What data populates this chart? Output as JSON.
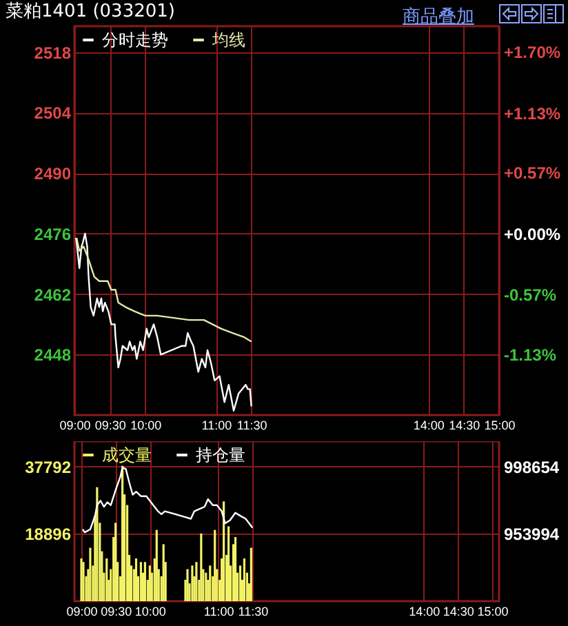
{
  "chart_data": [
    {
      "type": "line",
      "title": "菜粕1401 (033201)",
      "annotations": [
        "商品叠加"
      ],
      "xlim": [
        9,
        15
      ],
      "xticks": [
        {
          "value": 9,
          "label": "09:00"
        },
        {
          "value": 9.5,
          "label": "09:30"
        },
        {
          "value": 10,
          "label": "10:00"
        },
        {
          "value": 11,
          "label": "11:00"
        },
        {
          "value": 11.5,
          "label": "11:30"
        },
        {
          "value": 14,
          "label": "14:00"
        },
        {
          "value": 14.5,
          "label": "14:30"
        },
        {
          "value": 15,
          "label": "15:00"
        }
      ],
      "ylim": [
        2434,
        2524
      ],
      "yticks": [
        2518,
        2504,
        2490,
        2476,
        2462,
        2448
      ],
      "y2lim": [
        -1.7,
        1.94
      ],
      "y2ticks": [
        {
          "value": 1.7,
          "label": "+1.70%"
        },
        {
          "value": 1.13,
          "label": "+1.13%"
        },
        {
          "value": 0.57,
          "label": "+0.57%"
        },
        {
          "value": 0,
          "label": "+0.00%"
        },
        {
          "value": -0.57,
          "label": "-0.57%"
        },
        {
          "value": -1.13,
          "label": "-1.13%"
        }
      ],
      "grid": true,
      "legend": "top left",
      "series": [
        {
          "name": "分时走势",
          "color": "#ffffff",
          "x": [
            9.02,
            9.03,
            9.07,
            9.1,
            9.12,
            9.15,
            9.18,
            9.2,
            9.23,
            9.27,
            9.32,
            9.35,
            9.38,
            9.4,
            9.43,
            9.48,
            9.52,
            9.57,
            9.58,
            9.62,
            9.65,
            9.68,
            9.75,
            9.78,
            9.82,
            9.85,
            9.88,
            9.93,
            9.97,
            10.02,
            10.05,
            10.12,
            10.17,
            10.22,
            10.52,
            10.57,
            10.6,
            10.65,
            10.68,
            10.75,
            10.8,
            10.85,
            10.88,
            10.93,
            10.98,
            11.05,
            11.12,
            11.15,
            11.18,
            11.25,
            11.32,
            11.37,
            11.42,
            11.45,
            11.48,
            11.5
          ],
          "values": [
            2475,
            2474,
            2468,
            2473,
            2474,
            2476,
            2473,
            2466,
            2459,
            2457,
            2461,
            2459,
            2461,
            2458,
            2460,
            2458,
            2455,
            2455,
            2452,
            2445,
            2447,
            2450,
            2449,
            2451,
            2449,
            2450,
            2447,
            2451,
            2449,
            2454,
            2452,
            2455,
            2452,
            2448,
            2450,
            2450,
            2453,
            2451,
            2450,
            2444,
            2447,
            2445,
            2449,
            2446,
            2442,
            2443,
            2437,
            2439,
            2441,
            2435,
            2439,
            2440,
            2441,
            2440,
            2440,
            2436
          ]
        },
        {
          "name": "均线",
          "color": "#e6e6a8",
          "x": [
            9.03,
            9.07,
            9.13,
            9.2,
            9.28,
            9.35,
            9.47,
            9.52,
            9.58,
            9.62,
            9.72,
            9.85,
            10,
            10.17,
            10.62,
            10.83,
            10.95,
            11.07,
            11.23,
            11.4,
            11.5
          ],
          "values": [
            2475,
            2472,
            2473,
            2470,
            2466,
            2465,
            2465,
            2463,
            2463,
            2460,
            2459,
            2458,
            2457,
            2457,
            2456,
            2456,
            2455,
            2454,
            2453,
            2452,
            2451
          ]
        }
      ]
    },
    {
      "type": "bar",
      "xlim": [
        9,
        15
      ],
      "xticks": [
        {
          "value": 9,
          "label": "09:00"
        },
        {
          "value": 9.5,
          "label": "09:30"
        },
        {
          "value": 10,
          "label": "10:00"
        },
        {
          "value": 11,
          "label": "11:00"
        },
        {
          "value": 11.5,
          "label": "11:30"
        },
        {
          "value": 14,
          "label": "14:00"
        },
        {
          "value": 14.5,
          "label": "14:30"
        },
        {
          "value": 15,
          "label": "15:00"
        }
      ],
      "ylim": [
        0,
        44900
      ],
      "yticks": [
        37792,
        18896
      ],
      "y2lim": [
        909334,
        1015455
      ],
      "y2ticks": [
        998654,
        953994
      ],
      "grid": true,
      "legend": "top left",
      "series": [
        {
          "name": "成交量",
          "color": "#f2f266",
          "x": [
            9,
            9.03,
            9.07,
            9.1,
            9.13,
            9.17,
            9.2,
            9.23,
            9.27,
            9.3,
            9.33,
            9.37,
            9.4,
            9.43,
            9.47,
            9.5,
            9.53,
            9.57,
            9.6,
            9.63,
            9.67,
            9.7,
            9.73,
            9.77,
            9.8,
            9.83,
            9.87,
            9.9,
            9.93,
            9.97,
            10,
            10.03,
            10.07,
            10.1,
            10.13,
            10.17,
            10.2,
            10.23,
            10.52,
            10.55,
            10.58,
            10.62,
            10.65,
            10.68,
            10.72,
            10.75,
            10.78,
            10.82,
            10.85,
            10.88,
            10.92,
            10.95,
            10.98,
            11.02,
            11.05,
            11.08,
            11.12,
            11.15,
            11.18,
            11.22,
            11.25,
            11.28,
            11.32,
            11.35,
            11.38,
            11.42,
            11.45,
            11.48
          ],
          "values": [
            12000,
            11000,
            7000,
            9000,
            15000,
            10000,
            24000,
            32000,
            22000,
            14000,
            8000,
            12000,
            6000,
            9000,
            18000,
            22000,
            11000,
            7000,
            38000,
            30000,
            27000,
            13000,
            10000,
            9000,
            12000,
            7000,
            11000,
            8000,
            11000,
            6000,
            10000,
            8000,
            12000,
            20000,
            9000,
            7000,
            16000,
            11000,
            6000,
            9000,
            5000,
            10000,
            7000,
            11000,
            6000,
            19000,
            9000,
            8000,
            6000,
            10000,
            7000,
            20000,
            9000,
            6000,
            12000,
            28000,
            13000,
            21000,
            10000,
            16000,
            18000,
            8000,
            10000,
            6000,
            12000,
            8000,
            5000,
            15000
          ]
        },
        {
          "name": "持仓量",
          "type": "line",
          "axis": "y2",
          "color": "#ffffff",
          "x": [
            9.02,
            9.05,
            9.13,
            9.2,
            9.23,
            9.28,
            9.33,
            9.38,
            9.43,
            9.5,
            9.57,
            9.6,
            9.65,
            9.7,
            9.75,
            9.8,
            9.87,
            9.95,
            10,
            10.05,
            10.12,
            10.17,
            10.22,
            10.53,
            10.6,
            10.65,
            10.7,
            10.8,
            10.85,
            10.92,
            10.98,
            11.05,
            11.1,
            11.17,
            11.25,
            11.32,
            11.4,
            11.45,
            11.5
          ],
          "values": [
            957000,
            955000,
            957000,
            966000,
            973000,
            976000,
            972000,
            975000,
            973000,
            983000,
            992000,
            998000,
            997000,
            988000,
            980000,
            982000,
            979000,
            979000,
            976000,
            973000,
            969000,
            967000,
            969000,
            965000,
            964000,
            969000,
            970000,
            972000,
            977000,
            973000,
            973000,
            969000,
            961000,
            963000,
            968000,
            966000,
            964000,
            961000,
            958000
          ]
        }
      ]
    }
  ]
}
